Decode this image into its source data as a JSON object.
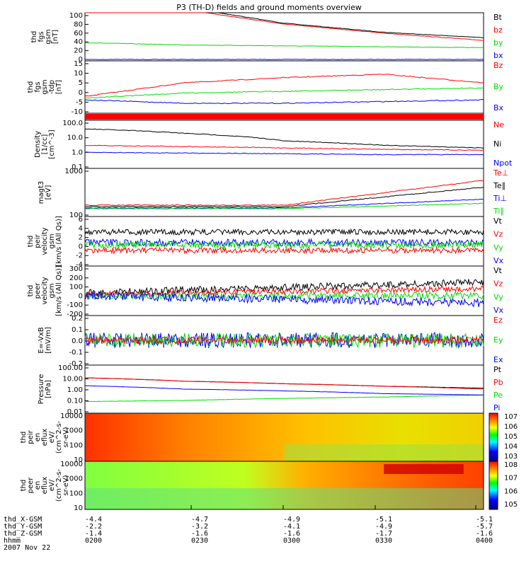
{
  "title": "P3 (TH-D) fields and ground moments overview",
  "date": "2007 Nov 22",
  "colors": {
    "black": "#000000",
    "red": "#ff0000",
    "green": "#00dd00",
    "blue": "#0000ff"
  },
  "panels": [
    {
      "id": "fgs_gsm",
      "ylabel": [
        "thd",
        "fgs",
        "gsm",
        "[nT]"
      ],
      "ticks": [
        "100",
        "80",
        "60",
        "40",
        "20",
        "0"
      ],
      "legend": [
        "Bt",
        "bz",
        "by",
        "bx"
      ]
    },
    {
      "id": "fgs_tdp",
      "ylabel": [
        "thd",
        "fgs",
        "gsm",
        "-tdp",
        "[nT]"
      ],
      "ticks": [
        "15",
        "10",
        "5",
        "0",
        "-5",
        "-10"
      ],
      "legend": [
        "Bz",
        "By",
        "Bx"
      ]
    },
    {
      "id": "flag",
      "ylabel": [],
      "ticks": [],
      "legend": []
    },
    {
      "id": "density",
      "ylabel": [
        "Density",
        "[1/cc]",
        "[cm^-3]"
      ],
      "ticks": [
        "100.0",
        "10.0",
        "1.0",
        "0.1"
      ],
      "legend": [
        "Ne",
        "Ni",
        "Npot"
      ]
    },
    {
      "id": "temp",
      "ylabel": [
        "magt3",
        "[eV]"
      ],
      "ticks": [
        "1000",
        "100"
      ],
      "legend": [
        "Te⊥",
        "Te∥",
        "Ti⊥",
        "Ti∥"
      ]
    },
    {
      "id": "peir_vel",
      "ylabel": [
        "thd",
        "peir",
        "velocity",
        "gsm",
        "[km/s (All Qs)]"
      ],
      "ticks": [
        "6",
        "4",
        "2",
        "0",
        "-2",
        "-4"
      ],
      "legend": [
        "Vt",
        "Vz",
        "Vy",
        "Vx"
      ]
    },
    {
      "id": "peer_vel",
      "ylabel": [
        "thd",
        "peer",
        "velocity",
        "gsm",
        "[km/s (All Qs)]"
      ],
      "ticks": [
        "300",
        "200",
        "100",
        "0",
        "-100",
        "-200"
      ],
      "legend": [
        "Vt",
        "Vz",
        "Vy",
        "Vx"
      ]
    },
    {
      "id": "efield",
      "ylabel": [
        "E=-VxB",
        "[mV/m]"
      ],
      "ticks": [
        "0.2",
        "0.1",
        "0.0",
        "-0.1",
        "-0.2"
      ],
      "legend": [
        "Ez",
        "Ey",
        "Ex"
      ]
    },
    {
      "id": "pressure",
      "ylabel": [
        "Pressure",
        "[nPa]"
      ],
      "ticks": [
        "100.00",
        "10.00",
        "1.00",
        "0.10",
        "0.01"
      ],
      "legend": [
        "Pt",
        "Pb",
        "Pe",
        "Pi"
      ]
    },
    {
      "id": "peir_spec",
      "ylabel": [
        "thd",
        "peir",
        "en",
        "eflux",
        "eV/",
        "(cm^2-s-",
        "sr-eV)"
      ],
      "ticks": [
        "10000",
        "1000",
        "100",
        "10"
      ],
      "cbar": [
        "10^7",
        "10^6",
        "10^5",
        "10^4",
        "10^3"
      ]
    },
    {
      "id": "peer_spec",
      "ylabel": [
        "thd",
        "peer",
        "en",
        "eflux",
        "eV/",
        "(cm^2-s-",
        "sr-eV)"
      ],
      "ticks": [
        "10000",
        "1000",
        "100",
        "10"
      ],
      "cbar": [
        "10^8",
        "10^7",
        "10^6",
        "10^5"
      ]
    }
  ],
  "footer": {
    "rows": [
      {
        "label": "thd_X-GSM",
        "values": [
          "-4.4",
          "-4.7",
          "-4.9",
          "-5.1",
          "-5.1"
        ]
      },
      {
        "label": "thd_Y-GSM",
        "values": [
          "-2.2",
          "-3.2",
          "-4.1",
          "-4.9",
          "-5.7"
        ]
      },
      {
        "label": "thd_Z-GSM",
        "values": [
          "-1.4",
          "-1.6",
          "-1.6",
          "-1.7",
          "-1.6"
        ]
      },
      {
        "label": "hhmm",
        "values": [
          "0200",
          "0230",
          "0300",
          "0330",
          "0400"
        ]
      }
    ]
  },
  "chart_data": {
    "type": "line",
    "title": "P3 (TH-D) fields and ground moments overview",
    "x": [
      "0200",
      "0230",
      "0300",
      "0330",
      "0400"
    ],
    "xlabel": "hhmm",
    "series": [
      {
        "name": "Bt",
        "values": [
          150,
          115,
          80,
          60,
          48
        ]
      },
      {
        "name": "bz",
        "values": [
          140,
          110,
          78,
          58,
          42
        ]
      },
      {
        "name": "by",
        "values": [
          37,
          32,
          30,
          28,
          26
        ]
      },
      {
        "name": "bx",
        "values": [
          0,
          0,
          0,
          0,
          0
        ]
      },
      {
        "name": "Bz_tdp",
        "values": [
          -3,
          5,
          8,
          10,
          5
        ]
      },
      {
        "name": "By_tdp",
        "values": [
          -4,
          -1,
          0,
          1,
          2
        ]
      },
      {
        "name": "Bx_tdp",
        "values": [
          -5,
          -7,
          -7,
          -6,
          -5
        ]
      },
      {
        "name": "Ne",
        "values": [
          40,
          20,
          6,
          3,
          2
        ]
      },
      {
        "name": "Ni",
        "values": [
          3,
          2.5,
          2,
          1.6,
          1.4
        ]
      },
      {
        "name": "Npot",
        "values": [
          1.0,
          0.9,
          0.8,
          0.7,
          0.7
        ]
      },
      {
        "name": "Pt",
        "values": [
          10,
          5,
          3,
          1.8,
          1.2
        ]
      },
      {
        "name": "Pb",
        "values": [
          10,
          5,
          3,
          1.8,
          1.0
        ]
      },
      {
        "name": "Pe",
        "values": [
          0.08,
          0.1,
          0.15,
          0.2,
          0.3
        ]
      },
      {
        "name": "Pi",
        "values": [
          2,
          1,
          0.7,
          0.4,
          0.3
        ]
      }
    ]
  }
}
